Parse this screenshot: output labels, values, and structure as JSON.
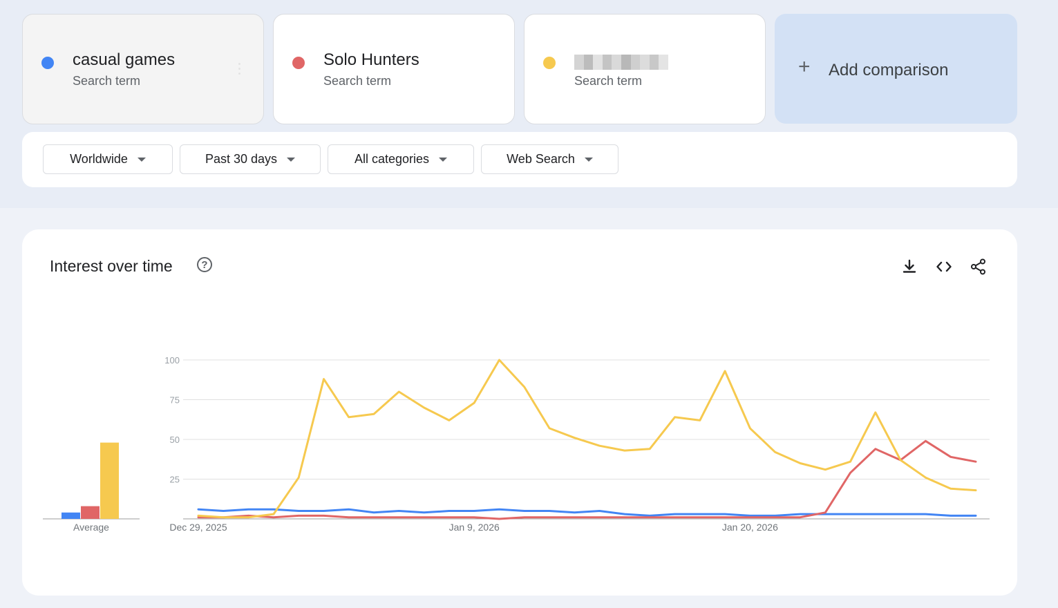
{
  "terms": [
    {
      "name": "casual games",
      "sub": "Search term",
      "color": "#4285f4"
    },
    {
      "name": "Solo Hunters",
      "sub": "Search term",
      "color": "#e06666"
    },
    {
      "name": "",
      "sub": "Search term",
      "color": "#f6c94f",
      "obscured": true
    }
  ],
  "add_comparison": {
    "label": "Add comparison",
    "icon": "plus-icon"
  },
  "filters": [
    {
      "label": "Worldwide"
    },
    {
      "label": "Past 30 days"
    },
    {
      "label": "All categories"
    },
    {
      "label": "Web Search"
    }
  ],
  "chart": {
    "title": "Interest over time",
    "help_icon": "question-circle-icon",
    "tools": [
      "download-icon",
      "embed-code-icon",
      "share-icon"
    ],
    "average_label": "Average"
  },
  "chart_data": {
    "type": "line",
    "ylim": [
      0,
      100
    ],
    "yticks": [
      25,
      50,
      75,
      100
    ],
    "grid": true,
    "x_tick_labels": [
      {
        "label": "Dec 29, 2025",
        "index": 0
      },
      {
        "label": "Jan 9, 2026",
        "index": 11
      },
      {
        "label": "Jan 20, 2026",
        "index": 22
      }
    ],
    "series": [
      {
        "name": "casual games",
        "color": "#4285f4",
        "values": [
          6,
          5,
          6,
          6,
          5,
          5,
          6,
          4,
          5,
          4,
          5,
          5,
          6,
          5,
          5,
          4,
          5,
          3,
          2,
          3,
          3,
          3,
          2,
          2,
          3,
          3,
          3,
          3,
          3,
          3,
          2,
          2
        ],
        "average": 4
      },
      {
        "name": "Solo Hunters",
        "color": "#e06666",
        "values": [
          1,
          1,
          2,
          1,
          2,
          2,
          1,
          1,
          1,
          1,
          1,
          1,
          0,
          1,
          1,
          1,
          1,
          1,
          1,
          1,
          1,
          1,
          1,
          1,
          1,
          4,
          29,
          44,
          37,
          49,
          39,
          36
        ],
        "average": 8
      },
      {
        "name": "",
        "color": "#f6c94f",
        "values": [
          2,
          1,
          1,
          3,
          26,
          88,
          64,
          66,
          80,
          70,
          62,
          73,
          100,
          83,
          57,
          51,
          46,
          43,
          44,
          64,
          62,
          93,
          57,
          42,
          35,
          31,
          36,
          67,
          37,
          26,
          19,
          18
        ],
        "average": 48
      }
    ]
  }
}
